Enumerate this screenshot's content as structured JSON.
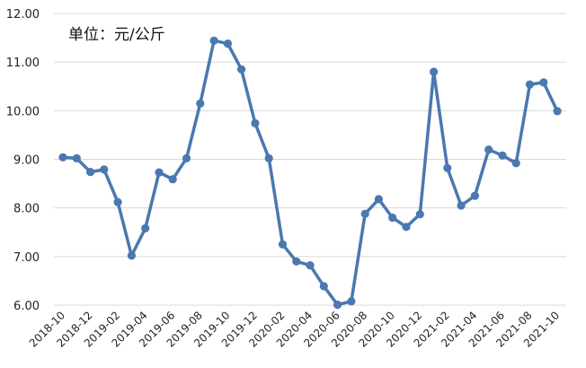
{
  "chart_data": {
    "type": "line",
    "unit_label": "单位：元/公斤",
    "ylim": [
      6.0,
      12.0
    ],
    "y_ticks": [
      "6.00",
      "7.00",
      "8.00",
      "9.00",
      "10.00",
      "11.00",
      "12.00"
    ],
    "x_tick_labels": [
      "2018-10",
      "2018-12",
      "2019-02",
      "2019-04",
      "2019-06",
      "2019-08",
      "2019-10",
      "2019-12",
      "2020-02",
      "2020-04",
      "2020-06",
      "2020-08",
      "2020-10",
      "2020-12",
      "2021-02",
      "2021-04",
      "2021-06",
      "2021-08",
      "2021-10"
    ],
    "grid": true,
    "legend": "none",
    "color": "#4a78b0",
    "series": [
      {
        "x": [
          "2018-10",
          "2018-11",
          "2018-12",
          "2019-01",
          "2019-02",
          "2019-03",
          "2019-04",
          "2019-05",
          "2019-06",
          "2019-07",
          "2019-08",
          "2019-09",
          "2019-10",
          "2019-11",
          "2019-12",
          "2020-01",
          "2020-02",
          "2020-03",
          "2020-04",
          "2020-05",
          "2020-06",
          "2020-07",
          "2020-08",
          "2020-09",
          "2020-10",
          "2020-11",
          "2020-12",
          "2021-01",
          "2021-02",
          "2021-03",
          "2021-04",
          "2021-05",
          "2021-06",
          "2021-07",
          "2021-08",
          "2021-09",
          "2021-10"
        ],
        "values": [
          9.04,
          9.02,
          8.74,
          8.79,
          8.12,
          7.02,
          7.58,
          8.73,
          8.59,
          9.02,
          10.15,
          11.44,
          11.38,
          10.85,
          9.74,
          9.02,
          7.25,
          6.9,
          6.82,
          6.39,
          6.01,
          6.08,
          7.88,
          8.18,
          7.8,
          7.61,
          7.87,
          10.8,
          8.82,
          8.05,
          8.25,
          9.2,
          9.08,
          8.92,
          10.54,
          10.58,
          9.99
        ]
      }
    ]
  }
}
